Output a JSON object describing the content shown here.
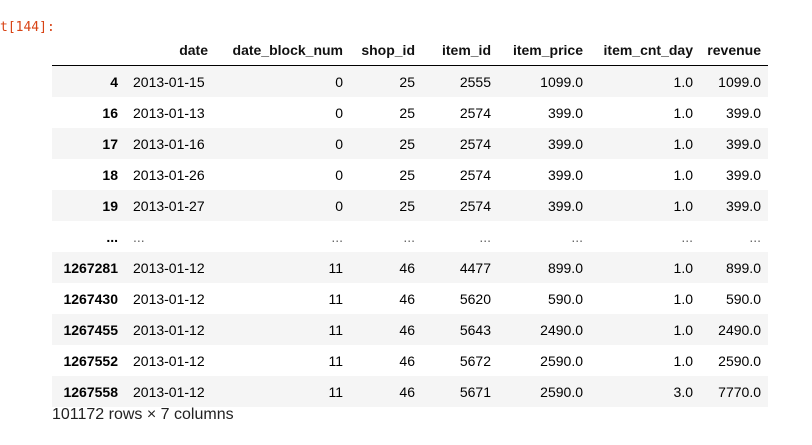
{
  "cell": {
    "prompt": "t[144]:"
  },
  "dataframe": {
    "columns": [
      "",
      "date",
      "date_block_num",
      "shop_id",
      "item_id",
      "item_price",
      "item_cnt_day",
      "revenue"
    ],
    "rows": [
      {
        "index": "4",
        "cells": [
          "2013-01-15",
          "0",
          "25",
          "2555",
          "1099.0",
          "1.0",
          "1099.0"
        ]
      },
      {
        "index": "16",
        "cells": [
          "2013-01-13",
          "0",
          "25",
          "2574",
          "399.0",
          "1.0",
          "399.0"
        ]
      },
      {
        "index": "17",
        "cells": [
          "2013-01-16",
          "0",
          "25",
          "2574",
          "399.0",
          "1.0",
          "399.0"
        ]
      },
      {
        "index": "18",
        "cells": [
          "2013-01-26",
          "0",
          "25",
          "2574",
          "399.0",
          "1.0",
          "399.0"
        ]
      },
      {
        "index": "19",
        "cells": [
          "2013-01-27",
          "0",
          "25",
          "2574",
          "399.0",
          "1.0",
          "399.0"
        ]
      },
      {
        "index": "...",
        "cells": [
          "...",
          "...",
          "...",
          "...",
          "...",
          "...",
          "..."
        ]
      },
      {
        "index": "1267281",
        "cells": [
          "2013-01-12",
          "11",
          "46",
          "4477",
          "899.0",
          "1.0",
          "899.0"
        ]
      },
      {
        "index": "1267430",
        "cells": [
          "2013-01-12",
          "11",
          "46",
          "5620",
          "590.0",
          "1.0",
          "590.0"
        ]
      },
      {
        "index": "1267455",
        "cells": [
          "2013-01-12",
          "11",
          "46",
          "5643",
          "2490.0",
          "1.0",
          "2490.0"
        ]
      },
      {
        "index": "1267552",
        "cells": [
          "2013-01-12",
          "11",
          "46",
          "5672",
          "2590.0",
          "1.0",
          "2590.0"
        ]
      },
      {
        "index": "1267558",
        "cells": [
          "2013-01-12",
          "11",
          "46",
          "5671",
          "2590.0",
          "3.0",
          "7770.0"
        ]
      }
    ],
    "shape": "101172 rows × 7 columns"
  }
}
